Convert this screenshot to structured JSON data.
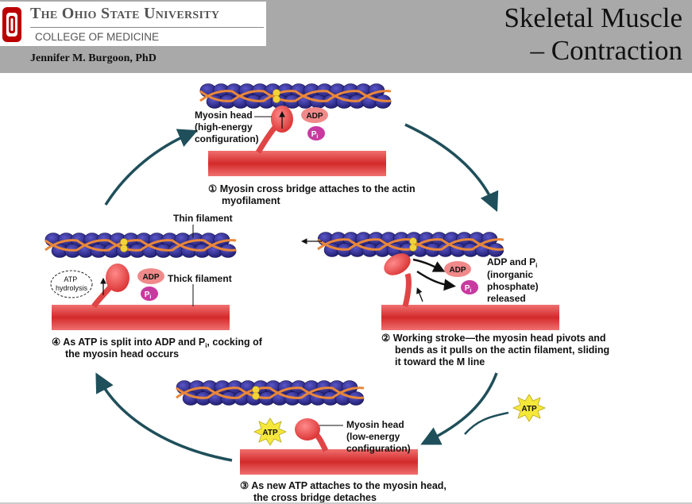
{
  "header": {
    "university": "The Ohio State University",
    "college": "COLLEGE OF MEDICINE",
    "author": "Jennifer M. Burgoon, PhD",
    "title_line1": "Skeletal Muscle",
    "title_line2": "– Contraction"
  },
  "diagram": {
    "labels": {
      "myosin_head_high": [
        "Myosin head",
        "(high-energy",
        "configuration)"
      ],
      "thin_filament": "Thin filament",
      "thick_filament": "Thick filament",
      "atp_hydrolysis": [
        "ATP",
        "hydrolysis"
      ],
      "adp_pi_released": [
        "ADP and P",
        "(inorganic",
        "phosphate)",
        "released"
      ],
      "myosin_head_low": [
        "Myosin head",
        "(low-energy",
        "configuration)"
      ],
      "adp": "ADP",
      "pi": "P",
      "pi_sub": "i",
      "atp": "ATP"
    },
    "steps": [
      {
        "number": "1",
        "text": [
          "Myosin cross bridge attaches to the actin",
          "myofilament"
        ]
      },
      {
        "number": "2",
        "text": [
          "Working stroke—the myosin head pivots and",
          "bends as it pulls on the actin filament, sliding",
          "it toward the M line"
        ]
      },
      {
        "number": "3",
        "text": [
          "As new ATP attaches to the myosin head,",
          "the cross bridge detaches"
        ]
      },
      {
        "number": "4",
        "text": [
          "As ATP is split into ADP and P",
          ", cocking of",
          "the myosin head occurs"
        ]
      }
    ],
    "colors": {
      "actin_bead": "#2d2a8c",
      "tropomyosin": "#e8873a",
      "troponin": "#f2d43a",
      "thick_filament": "#dd3b3b",
      "myosin_head": "#ee5555",
      "adp": "#f08a8a",
      "pi": "#c83aa0",
      "atp_star": "#f5e83a",
      "cycle_arrow": "#1f4f5a"
    }
  }
}
